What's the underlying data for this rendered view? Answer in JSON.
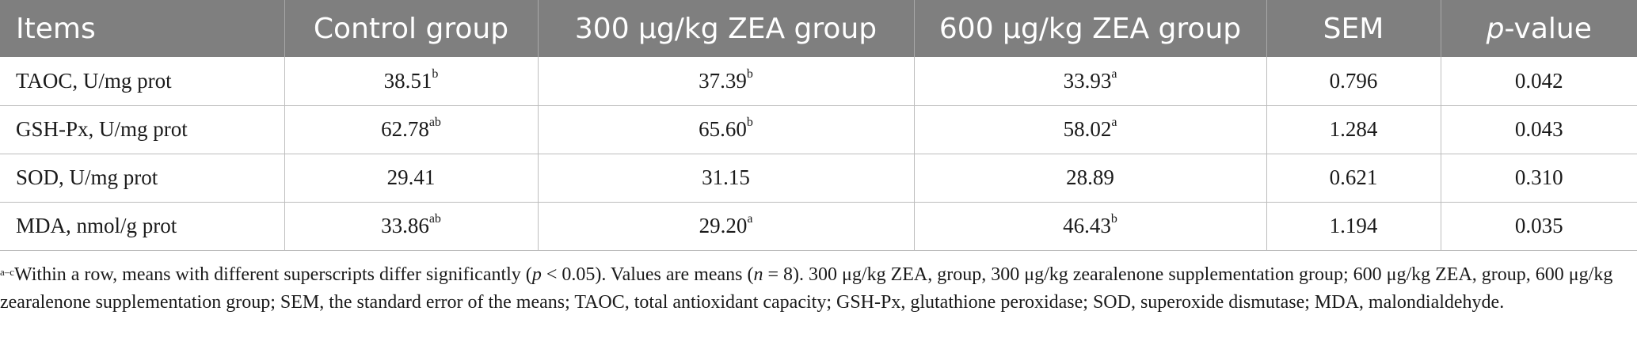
{
  "table": {
    "headers": [
      "Items",
      "Control group",
      "300 μg/kg ZEA group",
      "600 μg/kg ZEA group",
      "SEM",
      "p",
      "-value"
    ],
    "rows": [
      {
        "item": "TAOC, U/mg prot",
        "control": {
          "value": "38.51",
          "sup": "b"
        },
        "zea300": {
          "value": "37.39",
          "sup": "b"
        },
        "zea600": {
          "value": "33.93",
          "sup": "a"
        },
        "sem": "0.796",
        "p": "0.042"
      },
      {
        "item": "GSH-Px, U/mg prot",
        "control": {
          "value": "62.78",
          "sup": "ab"
        },
        "zea300": {
          "value": "65.60",
          "sup": "b"
        },
        "zea600": {
          "value": "58.02",
          "sup": "a"
        },
        "sem": "1.284",
        "p": "0.043"
      },
      {
        "item": "SOD, U/mg prot",
        "control": {
          "value": "29.41",
          "sup": ""
        },
        "zea300": {
          "value": "31.15",
          "sup": ""
        },
        "zea600": {
          "value": "28.89",
          "sup": ""
        },
        "sem": "0.621",
        "p": "0.310"
      },
      {
        "item": "MDA, nmol/g prot",
        "control": {
          "value": "33.86",
          "sup": "ab"
        },
        "zea300": {
          "value": "29.20",
          "sup": "a"
        },
        "zea600": {
          "value": "46.43",
          "sup": "b"
        },
        "sem": "1.194",
        "p": "0.035"
      }
    ]
  },
  "footnote": {
    "sup": "a–c",
    "text1": "Within a row, means with different superscripts differ significantly (",
    "p_italic": "p",
    "text2": " < 0.05). Values are means (",
    "n_italic": "n",
    "text3": " = 8). 300 μg/kg ZEA, group, 300 μg/kg zearalenone supplementation group; 600 μg/kg ZEA, group, 600 μg/kg zearalenone supplementation group; SEM, the standard error of the means; TAOC, total antioxidant capacity; GSH-Px, glutathione peroxidase; SOD, superoxide dismutase; MDA, malondialdehyde."
  }
}
